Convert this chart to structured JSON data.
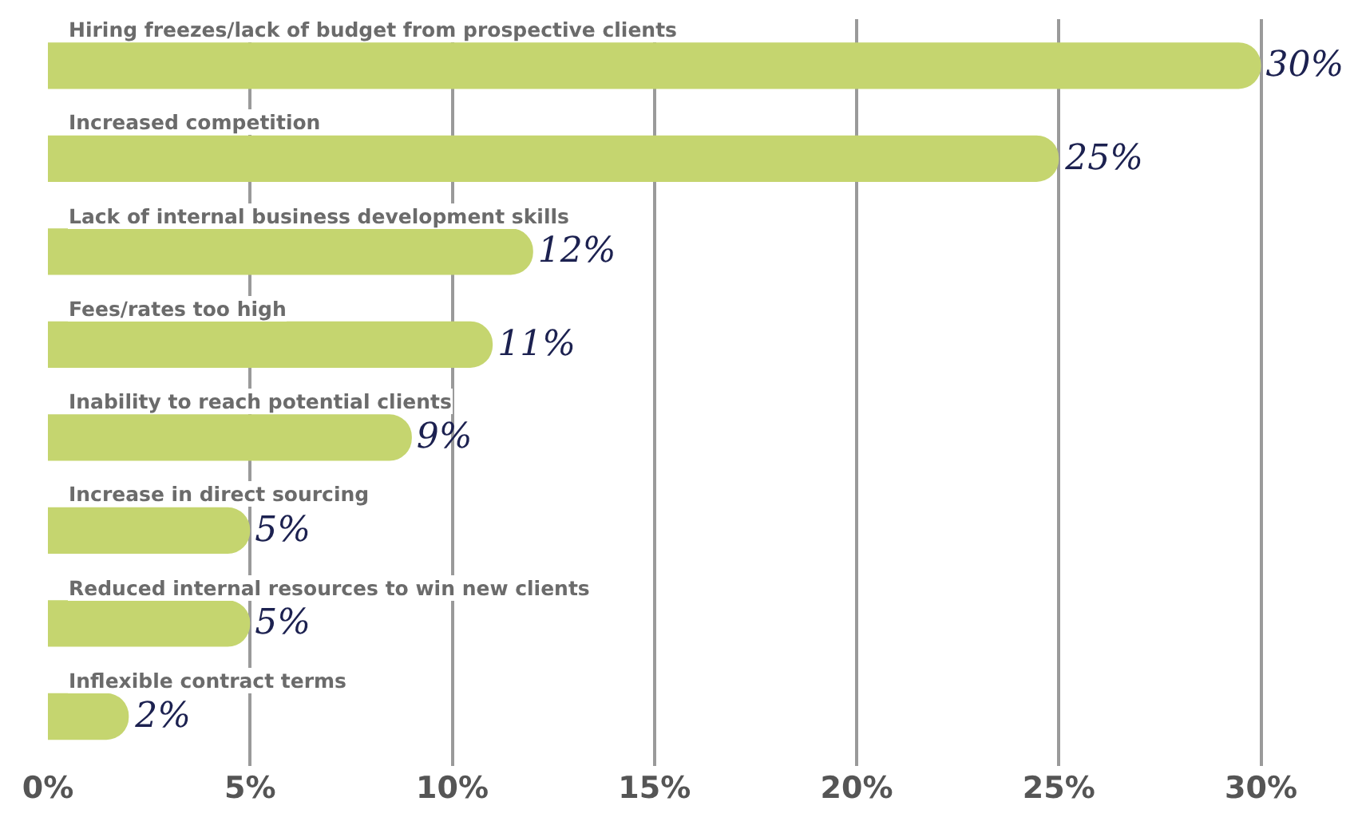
{
  "chart_data": {
    "type": "bar",
    "orientation": "horizontal",
    "categories": [
      "Hiring freezes/lack of budget from prospective clients",
      "Increased competition",
      "Lack of internal business development skills",
      "Fees/rates too high",
      "Inability to reach potential clients",
      "Increase in direct sourcing",
      "Reduced internal resources to win new clients",
      "Inflexible contract terms"
    ],
    "values": [
      30,
      25,
      12,
      11,
      9,
      5,
      5,
      2
    ],
    "value_labels": [
      "30%",
      "25%",
      "12%",
      "11%",
      "9%",
      "5%",
      "5%",
      "2%"
    ],
    "color": "#c5d56f",
    "xlim": [
      0,
      32.3
    ],
    "xticks": [
      {
        "value": 0,
        "label": "0%"
      },
      {
        "value": 5,
        "label": "5%"
      },
      {
        "value": 10,
        "label": "10%"
      },
      {
        "value": 15,
        "label": "15%"
      },
      {
        "value": 20,
        "label": "20%"
      },
      {
        "value": 25,
        "label": "25%"
      },
      {
        "value": 30,
        "label": "30%"
      }
    ],
    "grid": "x",
    "legend": false,
    "tick_labels": "x"
  }
}
